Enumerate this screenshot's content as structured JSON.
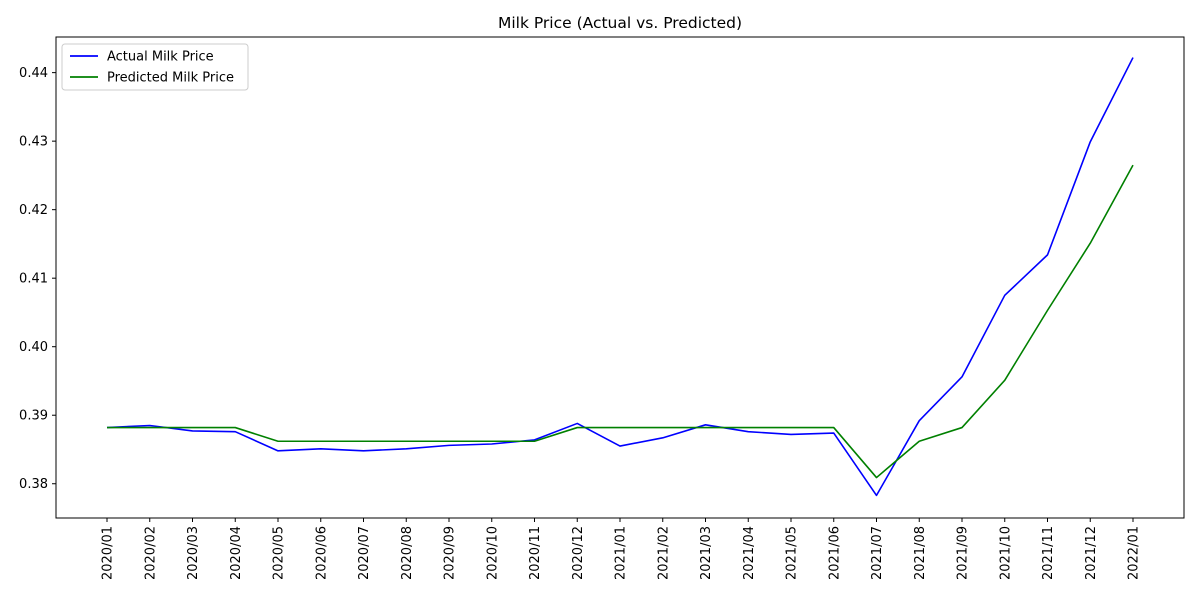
{
  "chart_data": {
    "type": "line",
    "title": "Milk Price (Actual vs. Predicted)",
    "xlabel": "",
    "ylabel": "",
    "categories": [
      "2020/01",
      "2020/02",
      "2020/03",
      "2020/04",
      "2020/05",
      "2020/06",
      "2020/07",
      "2020/08",
      "2020/09",
      "2020/10",
      "2020/11",
      "2020/12",
      "2021/01",
      "2021/02",
      "2021/03",
      "2021/04",
      "2021/05",
      "2021/06",
      "2021/07",
      "2021/08",
      "2021/09",
      "2021/10",
      "2021/11",
      "2021/12",
      "2022/01"
    ],
    "yticks": [
      0.38,
      0.39,
      0.4,
      0.41,
      0.42,
      0.43,
      0.44
    ],
    "ytick_labels": [
      "0.38",
      "0.39",
      "0.40",
      "0.41",
      "0.42",
      "0.43",
      "0.44"
    ],
    "ylim": [
      0.375,
      0.4452
    ],
    "grid": false,
    "legend_position": "top-left",
    "series": [
      {
        "name": "Actual Milk Price",
        "color": "#0000ff",
        "values": [
          0.3882,
          0.3885,
          0.3877,
          0.3876,
          0.3848,
          0.3851,
          0.3848,
          0.3851,
          0.3856,
          0.3858,
          0.3864,
          0.3888,
          0.3855,
          0.3867,
          0.3886,
          0.3876,
          0.3872,
          0.3874,
          0.3783,
          0.3892,
          0.3956,
          0.4075,
          0.4134,
          0.4299,
          0.4422
        ]
      },
      {
        "name": "Predicted Milk Price",
        "color": "#008000",
        "values": [
          0.3882,
          0.3882,
          0.3882,
          0.3882,
          0.3862,
          0.3862,
          0.3862,
          0.3862,
          0.3862,
          0.3862,
          0.3862,
          0.3882,
          0.3882,
          0.3882,
          0.3882,
          0.3882,
          0.3882,
          0.3882,
          0.3809,
          0.3862,
          0.3882,
          0.3951,
          0.4053,
          0.4151,
          0.4265
        ]
      }
    ]
  }
}
